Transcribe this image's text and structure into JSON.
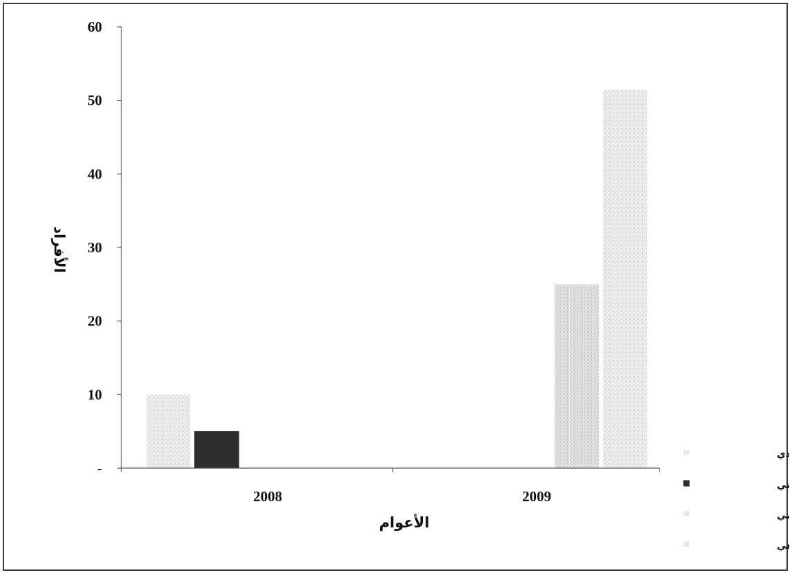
{
  "chart_data": {
    "type": "bar",
    "categories": [
      "2008",
      "2009"
    ],
    "series": [
      {
        "name": "التأهيل الاجتماعي",
        "values": [
          0,
          25
        ],
        "color": "#dcdcdc"
      },
      {
        "name": "التأهيل العلمي",
        "values": [
          10,
          0
        ],
        "color": "#e3e3e3"
      },
      {
        "name": "التأهيل المهني",
        "values": [
          5,
          0
        ],
        "color": "#2e2e2e"
      },
      {
        "name": "التأهيل الأقتصادي",
        "values": [
          0,
          51.5
        ],
        "color": "#e6e6e6"
      }
    ],
    "ylim": [
      0,
      60
    ],
    "yticks": [
      {
        "value": 0,
        "label": "-"
      },
      {
        "value": 10,
        "label": "10"
      },
      {
        "value": 20,
        "label": "20"
      },
      {
        "value": 30,
        "label": "30"
      },
      {
        "value": 40,
        "label": "40"
      },
      {
        "value": 50,
        "label": "50"
      },
      {
        "value": 60,
        "label": "60"
      }
    ],
    "xlabel": "الأعوام",
    "ylabel": "الأفراد",
    "grid": false,
    "legend_position": "bottom-right",
    "legend": [
      "التأهيل الأقتصادي",
      "التأهيل المهني",
      "التأهيل العلمي",
      "التأهيل الاجتماعي"
    ]
  }
}
